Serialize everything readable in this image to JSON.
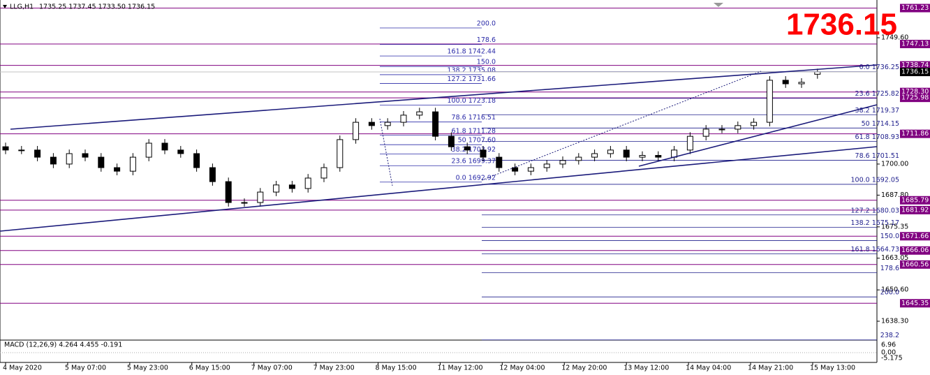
{
  "header": {
    "title": "LLG,H1",
    "ohlc": "1735.25 1737.45 1733.50 1736.15"
  },
  "chart_data": {
    "type": "candlestick",
    "open": [
      1706.8,
      1705.5,
      1705.5,
      1702.7,
      1700.0,
      1704.1,
      1702.7,
      1698.6,
      1697.2,
      1702.7,
      1708.2,
      1705.5,
      1704.1,
      1698.6,
      1693.1,
      1684.9,
      1684.9,
      1689.0,
      1691.8,
      1690.4,
      1694.5,
      1698.6,
      1709.6,
      1716.4,
      1715.1,
      1716.4,
      1719.2,
      1720.5,
      1710.9,
      1706.8,
      1705.5,
      1702.7,
      1698.6,
      1697.2,
      1698.6,
      1700.0,
      1701.4,
      1702.7,
      1704.1,
      1705.5,
      1702.7,
      1703.4,
      1702.7,
      1705.5,
      1710.9,
      1713.7,
      1713.7,
      1715.1,
      1716.4,
      1732.9,
      1731.5,
      1735.25
    ],
    "high": [
      1708.4,
      1707.1,
      1707.1,
      1704.3,
      1705.7,
      1705.7,
      1704.3,
      1700.2,
      1704.3,
      1709.8,
      1709.8,
      1707.1,
      1705.7,
      1700.2,
      1694.7,
      1686.5,
      1690.6,
      1693.4,
      1693.4,
      1696.1,
      1700.2,
      1711.2,
      1718.0,
      1718.0,
      1718.0,
      1720.8,
      1722.1,
      1722.1,
      1712.5,
      1708.4,
      1707.1,
      1704.3,
      1700.2,
      1700.2,
      1701.6,
      1703.0,
      1704.3,
      1705.7,
      1707.1,
      1707.1,
      1705.0,
      1705.0,
      1707.1,
      1712.5,
      1715.3,
      1715.3,
      1716.7,
      1718.0,
      1734.5,
      1734.5,
      1733.7,
      1737.45
    ],
    "low": [
      1703.9,
      1703.9,
      1701.1,
      1698.4,
      1698.4,
      1701.1,
      1697.0,
      1695.6,
      1695.6,
      1701.1,
      1703.9,
      1702.5,
      1697.0,
      1691.5,
      1683.3,
      1683.3,
      1683.3,
      1687.4,
      1688.8,
      1688.8,
      1692.9,
      1697.0,
      1708.0,
      1713.5,
      1713.5,
      1714.8,
      1717.6,
      1709.3,
      1705.2,
      1703.9,
      1701.1,
      1697.0,
      1695.6,
      1695.6,
      1697.0,
      1698.4,
      1699.8,
      1701.1,
      1702.5,
      1701.1,
      1701.1,
      1701.1,
      1701.1,
      1703.9,
      1709.3,
      1712.1,
      1712.1,
      1713.5,
      1714.8,
      1729.9,
      1729.9,
      1733.5
    ],
    "close": [
      1705.5,
      1705.5,
      1702.7,
      1700.0,
      1704.1,
      1702.7,
      1698.6,
      1697.2,
      1702.7,
      1708.2,
      1705.5,
      1704.1,
      1698.6,
      1693.1,
      1684.9,
      1684.9,
      1689.0,
      1691.8,
      1690.4,
      1694.5,
      1698.6,
      1709.6,
      1716.4,
      1715.1,
      1716.4,
      1719.2,
      1720.5,
      1710.9,
      1706.8,
      1705.5,
      1702.7,
      1698.6,
      1697.2,
      1698.6,
      1700.0,
      1701.4,
      1702.7,
      1704.1,
      1705.5,
      1702.7,
      1703.4,
      1702.7,
      1705.5,
      1710.9,
      1713.7,
      1713.7,
      1715.1,
      1716.4,
      1732.9,
      1731.5,
      1732.1,
      1736.15
    ],
    "up_color": "#ffffff",
    "down_color": "#000000",
    "current_price": 1736.15,
    "ylim": [
      1630.9,
      1764.4
    ],
    "yticks": [
      {
        "value": 1749.6,
        "label": "1749.60"
      },
      {
        "value": 1700,
        "label": "1700.00"
      },
      {
        "value": 1687.8,
        "label": "1687.80"
      },
      1675.35,
      1663.05,
      {
        "value": 1650.6,
        "label": "1650.60"
      },
      {
        "value": 1638.3,
        "label": "1638.30"
      }
    ],
    "xticks": [
      {
        "value": 0,
        "label": "4 May 2020"
      },
      {
        "value": 3.9,
        "label": "5 May 07:00"
      },
      {
        "value": 7.8,
        "label": "5 May 23:00"
      },
      {
        "value": 11.7,
        "label": "6 May 15:00"
      },
      {
        "value": 15.6,
        "label": "7 May 07:00"
      },
      {
        "value": 19.5,
        "label": "7 May 23:00"
      },
      {
        "value": 23.4,
        "label": "8 May 15:00"
      },
      {
        "value": 27.3,
        "label": "11 May 12:00"
      },
      {
        "value": 31.2,
        "label": "12 May 04:00"
      },
      {
        "value": 35.1,
        "label": "12 May 20:00"
      },
      {
        "value": 39,
        "label": "13 May 12:00"
      },
      {
        "value": 42.9,
        "label": "14 May 04:00"
      },
      {
        "value": 46.8,
        "label": "14 May 21:00"
      },
      {
        "value": 50.7,
        "label": "15 May 13:00"
      }
    ],
    "levels_color": "#800080",
    "levels": [
      {
        "value": 1761.23,
        "label": "1761.23"
      },
      {
        "value": 1747.13,
        "label": "1747.13"
      },
      {
        "value": 1738.74,
        "label": "1738.74"
      },
      {
        "value": 1728.3,
        "label": "1728.30"
      },
      {
        "value": 1725.98,
        "label": "1725.98"
      },
      {
        "value": 1711.86,
        "label": "1711.86"
      },
      {
        "value": 1685.79,
        "label": "1685.79"
      },
      {
        "value": 1681.92,
        "label": "1681.92"
      },
      {
        "value": 1671.66,
        "label": "1671.66"
      },
      {
        "value": 1666.06,
        "label": "1666.06"
      },
      {
        "value": 1660.56,
        "label": "1660.56"
      },
      {
        "value": 1645.35,
        "label": "1645.35"
      }
    ],
    "fib_sets": [
      {
        "color": "#2a2aa8",
        "levels": [
          {
            "value": 1753.44,
            "label": "200.0"
          },
          {
            "value": 1746.96,
            "label": "178.6"
          },
          {
            "value": 1742.44,
            "label": "161.8 1742.44"
          },
          {
            "value": 1738.31,
            "label": "150.0"
          },
          {
            "value": 1735.08,
            "label": "138.2 1735.08"
          },
          {
            "value": 1731.66,
            "label": "127.2 1731.66"
          },
          {
            "value": 1723.18,
            "label": "100.0 1723.18"
          },
          {
            "value": 1716.51,
            "label": "78.6 1716.51"
          },
          {
            "value": 1711.28,
            "label": "61.8 1711.28"
          },
          {
            "value": 1707.6,
            "label": "50 1707.60"
          },
          {
            "value": 1703.92,
            "label": "38.2 1703.92"
          },
          {
            "value": 1699.37,
            "label": "23.6 1699.37"
          },
          {
            "value": 1692.92,
            "label": "0.0 1692.92"
          }
        ]
      },
      {
        "color": "#1e1e8c",
        "levels": [
          {
            "value": 1736.25,
            "label": "0.0 1736.25"
          },
          {
            "value": 1725.82,
            "label": "23.6 1725.82"
          },
          {
            "value": 1719.37,
            "label": "38.2 1719.37"
          },
          {
            "value": 1714.15,
            "label": "50 1714.15"
          },
          {
            "value": 1708.93,
            "label": "61.8 1708.93"
          },
          {
            "value": 1701.51,
            "label": "78.6 1701.51"
          },
          {
            "value": 1692.05,
            "label": "100.0 1692.05"
          },
          {
            "value": 1680.03,
            "label": "127.2 1680.03"
          },
          {
            "value": 1675.17,
            "label": "138.2 1675.17"
          },
          {
            "value": 1669.95,
            "label": "150.0"
          },
          {
            "value": 1664.73,
            "label": "161.8 1664.73"
          },
          {
            "value": 1657.31,
            "label": "178.6"
          },
          {
            "value": 1647.85,
            "label": "200.0"
          },
          {
            "value": 1630.97,
            "label": "238.2"
          }
        ]
      }
    ]
  },
  "macd": {
    "label": "MACD (12,26,9) 4.264 4.455 -0.191",
    "ticks": [
      "6.96",
      "0.00",
      "-5.175"
    ]
  }
}
